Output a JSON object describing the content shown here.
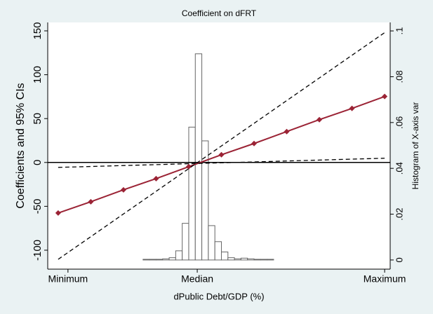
{
  "chart_data": {
    "type": "line",
    "title": "Coefficient on dFRT",
    "xlabel": "dPublic Debt/GDP (%)",
    "ylabel": "Coefficients and 95% CIs",
    "y2label": "Histogram of X-axis var",
    "x": [
      0,
      1,
      2,
      3,
      4,
      5,
      6,
      7,
      8,
      9,
      10
    ],
    "xlim": [
      -0.32,
      10.17
    ],
    "xticks": [
      {
        "value": 0.3,
        "label": "Minimum"
      },
      {
        "value": 4.26,
        "label": "Median"
      },
      {
        "value": 10,
        "label": "Maximum"
      }
    ],
    "ylim": [
      -121.6,
      159.6
    ],
    "yticks": [
      -100,
      -50,
      0,
      50,
      100,
      150
    ],
    "y2lim": [
      -0.004,
      0.1037
    ],
    "y2ticks": [
      0,
      {
        "value": 0.02,
        "label": ".02"
      },
      {
        "value": 0.04,
        "label": ".04"
      },
      {
        "value": 0.06,
        "label": ".06"
      },
      {
        "value": 0.08,
        "label": ".08"
      },
      {
        "value": 0.1,
        "label": ".1"
      }
    ],
    "series": [
      {
        "color": "#9b2335",
        "values": [
          -57.6,
          -44.8,
          -31.2,
          -18.4,
          -4.8,
          8.8,
          21.6,
          35.2,
          48.8,
          61.6,
          75.2
        ]
      },
      {
        "color": "#000000",
        "dashed": true,
        "values": [
          -110.4,
          -84.6,
          -58.7,
          -32.9,
          -7.0,
          18.8,
          44.6,
          70.5,
          96.3,
          122.2,
          148.0
        ]
      },
      {
        "color": "#000000",
        "dashed": true,
        "values": [
          -5.6,
          -4.6,
          -3.5,
          -2.5,
          -1.4,
          -0.4,
          0.6,
          1.7,
          2.7,
          3.8,
          4.8
        ]
      }
    ],
    "histogram": {
      "axis": "y2",
      "bins": [
        2.6,
        2.8,
        3.0,
        3.2,
        3.4,
        3.6,
        3.8,
        4.0,
        4.2,
        4.4,
        4.6,
        4.8,
        5.0,
        5.2,
        5.4,
        5.6,
        5.8,
        6.0,
        6.2,
        6.4,
        6.6
      ],
      "counts": [
        0.0003,
        0.0003,
        0.0003,
        0.0005,
        0.001,
        0.004,
        0.016,
        0.058,
        0.09,
        0.052,
        0.015,
        0.008,
        0.0035,
        0.001,
        0.0005,
        0.0008,
        0.0005,
        0.0003,
        0.0003,
        0.0003
      ]
    },
    "zero_line": true
  }
}
